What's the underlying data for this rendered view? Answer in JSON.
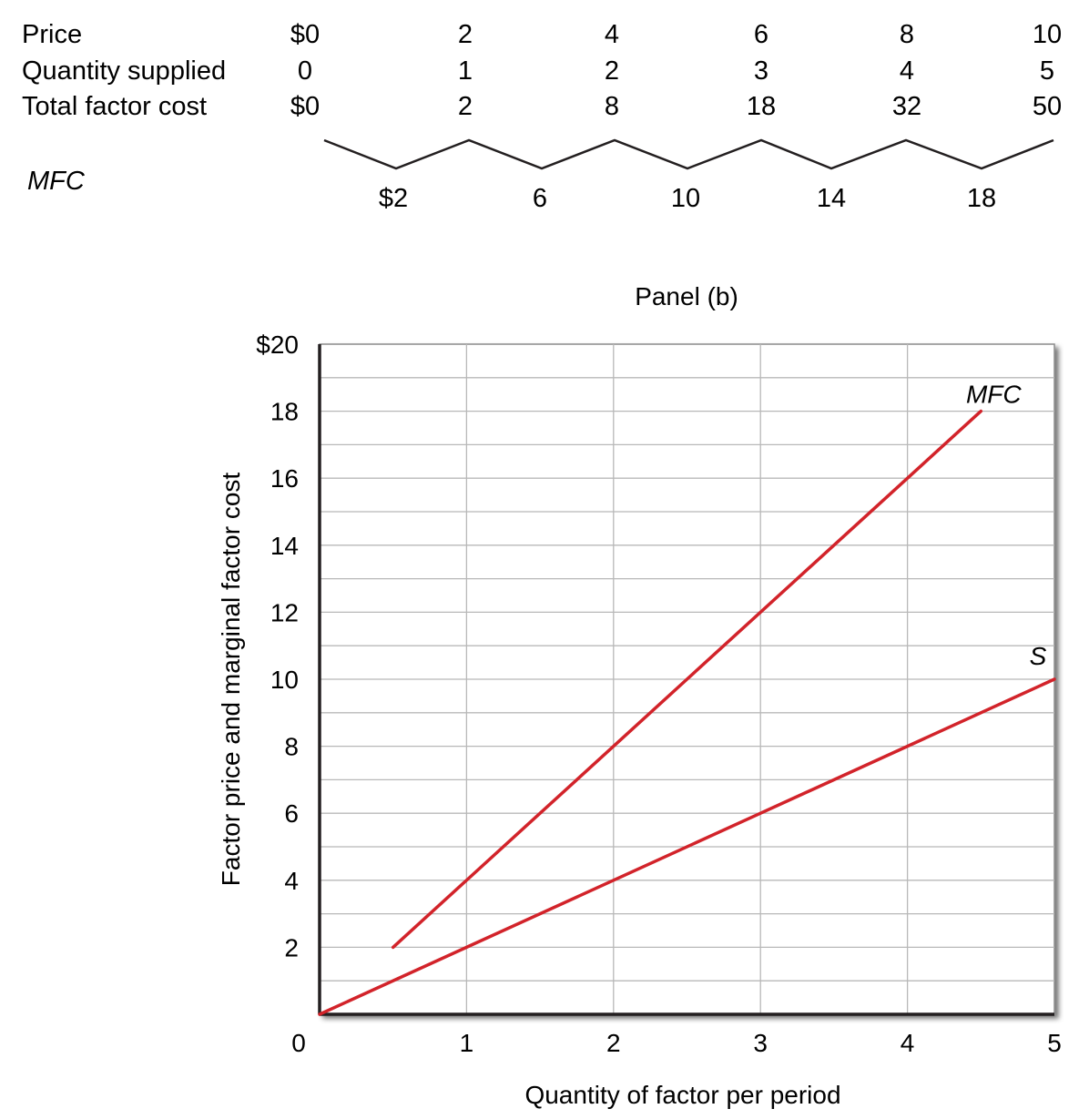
{
  "table": {
    "rows": [
      {
        "label": "Price",
        "values": [
          "$0",
          "2",
          "4",
          "6",
          "8",
          "10"
        ]
      },
      {
        "label": "Quantity supplied",
        "values": [
          "0",
          "1",
          "2",
          "3",
          "4",
          "5"
        ]
      },
      {
        "label": "Total factor cost",
        "values": [
          "$0",
          "2",
          "8",
          "18",
          "32",
          "50"
        ]
      }
    ],
    "mfc": {
      "label": "MFC",
      "values": [
        "$2",
        "6",
        "10",
        "14",
        "18"
      ]
    }
  },
  "chart_data": {
    "type": "line",
    "title": "Panel (b)",
    "xlabel": "Quantity of factor per period",
    "ylabel": "Factor price and marginal factor cost",
    "xlim": [
      0,
      5
    ],
    "ylim": [
      0,
      20
    ],
    "grid": true,
    "x_ticks": [
      0,
      1,
      2,
      3,
      4,
      5
    ],
    "x_tick_labels": [
      "0",
      "1",
      "2",
      "3",
      "4",
      "5"
    ],
    "y_ticks": [
      2,
      4,
      6,
      8,
      10,
      12,
      14,
      16,
      18,
      20
    ],
    "y_tick_labels": [
      "2",
      "4",
      "6",
      "8",
      "10",
      "12",
      "14",
      "16",
      "18",
      "$20"
    ],
    "series": [
      {
        "name": "MFC",
        "color": "#d2232a",
        "x": [
          0.5,
          1.5,
          2.5,
          3.5,
          4.5
        ],
        "y": [
          2,
          6,
          10,
          14,
          18
        ]
      },
      {
        "name": "S",
        "color": "#d2232a",
        "x": [
          0,
          1,
          2,
          3,
          4,
          5
        ],
        "y": [
          0,
          2,
          4,
          6,
          8,
          10
        ]
      }
    ]
  }
}
